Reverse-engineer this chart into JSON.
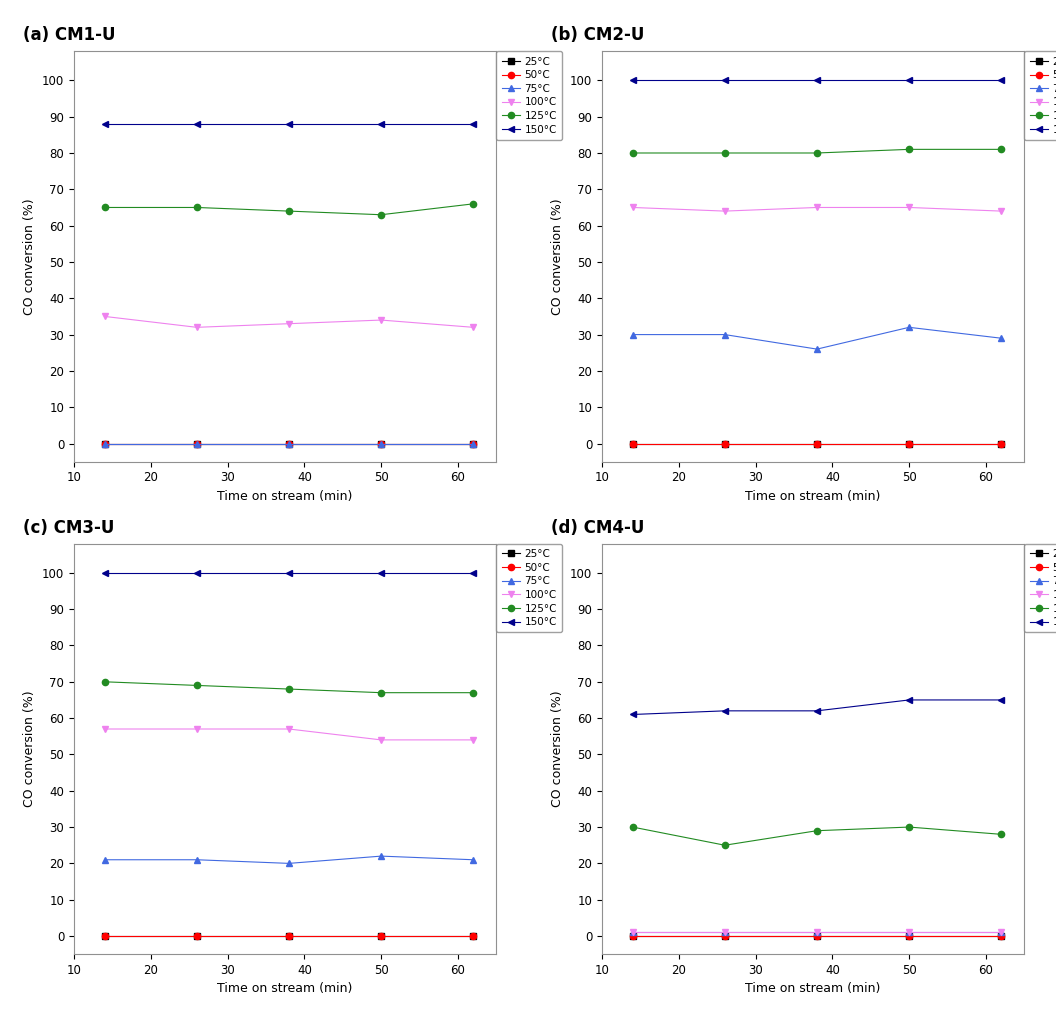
{
  "subplots": [
    {
      "title": "(a) CM1-U",
      "x": [
        14,
        26,
        38,
        50,
        62
      ],
      "series": {
        "25": {
          "color": "#000000",
          "marker": "s",
          "values": [
            0,
            0,
            0,
            0,
            0
          ]
        },
        "50": {
          "color": "#ff0000",
          "marker": "o",
          "values": [
            0,
            0,
            0,
            0,
            0
          ]
        },
        "75": {
          "color": "#4169e1",
          "marker": "^",
          "values": [
            0,
            0,
            0,
            0,
            0
          ]
        },
        "100": {
          "color": "#ee82ee",
          "marker": "v",
          "values": [
            35,
            32,
            33,
            34,
            32
          ]
        },
        "125": {
          "color": "#228b22",
          "marker": "o",
          "values": [
            65,
            65,
            64,
            63,
            66
          ]
        },
        "150": {
          "color": "#00008b",
          "marker": "<",
          "values": [
            88,
            88,
            88,
            88,
            88
          ]
        }
      }
    },
    {
      "title": "(b) CM2-U",
      "x": [
        14,
        26,
        38,
        50,
        62
      ],
      "series": {
        "25": {
          "color": "#000000",
          "marker": "s",
          "values": [
            0,
            0,
            0,
            0,
            0
          ]
        },
        "50": {
          "color": "#ff0000",
          "marker": "o",
          "values": [
            0,
            0,
            0,
            0,
            0
          ]
        },
        "75": {
          "color": "#4169e1",
          "marker": "^",
          "values": [
            30,
            30,
            26,
            32,
            29
          ]
        },
        "100": {
          "color": "#ee82ee",
          "marker": "v",
          "values": [
            65,
            64,
            65,
            65,
            64
          ]
        },
        "125": {
          "color": "#228b22",
          "marker": "o",
          "values": [
            80,
            80,
            80,
            81,
            81
          ]
        },
        "150": {
          "color": "#00008b",
          "marker": "<",
          "values": [
            100,
            100,
            100,
            100,
            100
          ]
        }
      }
    },
    {
      "title": "(c) CM3-U",
      "x": [
        14,
        26,
        38,
        50,
        62
      ],
      "series": {
        "25": {
          "color": "#000000",
          "marker": "s",
          "values": [
            0,
            0,
            0,
            0,
            0
          ]
        },
        "50": {
          "color": "#ff0000",
          "marker": "o",
          "values": [
            0,
            0,
            0,
            0,
            0
          ]
        },
        "75": {
          "color": "#4169e1",
          "marker": "^",
          "values": [
            21,
            21,
            20,
            22,
            21
          ]
        },
        "100": {
          "color": "#ee82ee",
          "marker": "v",
          "values": [
            57,
            57,
            57,
            54,
            54
          ]
        },
        "125": {
          "color": "#228b22",
          "marker": "o",
          "values": [
            70,
            69,
            68,
            67,
            67
          ]
        },
        "150": {
          "color": "#00008b",
          "marker": "<",
          "values": [
            100,
            100,
            100,
            100,
            100
          ]
        }
      }
    },
    {
      "title": "(d) CM4-U",
      "x": [
        14,
        26,
        38,
        50,
        62
      ],
      "series": {
        "25": {
          "color": "#000000",
          "marker": "s",
          "values": [
            0,
            0,
            0,
            0,
            0
          ]
        },
        "50": {
          "color": "#ff0000",
          "marker": "o",
          "values": [
            0,
            0,
            0,
            0,
            0
          ]
        },
        "75": {
          "color": "#4169e1",
          "marker": "^",
          "values": [
            1,
            1,
            1,
            1,
            1
          ]
        },
        "100": {
          "color": "#ee82ee",
          "marker": "v",
          "values": [
            1,
            1,
            1,
            1,
            1
          ]
        },
        "125": {
          "color": "#228b22",
          "marker": "o",
          "values": [
            30,
            25,
            29,
            30,
            28
          ]
        },
        "150": {
          "color": "#00008b",
          "marker": "<",
          "values": [
            61,
            62,
            62,
            65,
            65
          ]
        }
      }
    }
  ],
  "legend_labels": [
    "25°C",
    "50°C",
    "75°C",
    "100°C",
    "125°C",
    "150°C"
  ],
  "xlabel": "Time on stream (min)",
  "ylabel": "CO conversion (%)",
  "xlim": [
    10,
    65
  ],
  "ylim": [
    -5,
    108
  ],
  "xticks": [
    10,
    20,
    30,
    40,
    50,
    60
  ],
  "yticks": [
    0,
    10,
    20,
    30,
    40,
    50,
    60,
    70,
    80,
    90,
    100
  ],
  "bg_color": "#f0f0f0",
  "fig_bg": "#e8e8e8"
}
